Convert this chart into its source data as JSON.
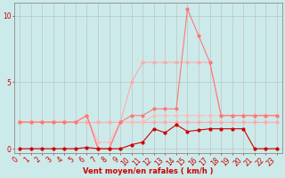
{
  "x": [
    0,
    1,
    2,
    3,
    4,
    5,
    6,
    7,
    8,
    9,
    10,
    11,
    12,
    13,
    14,
    15,
    16,
    17,
    18,
    19,
    20,
    21,
    22,
    23
  ],
  "line_flat": [
    2.0,
    2.0,
    2.0,
    2.0,
    2.0,
    2.0,
    2.0,
    2.0,
    2.0,
    2.0,
    2.0,
    2.0,
    2.0,
    2.0,
    2.0,
    2.0,
    2.0,
    2.0,
    2.0,
    2.0,
    2.0,
    2.0,
    2.0,
    2.0
  ],
  "line_envelope": [
    2.0,
    2.0,
    2.0,
    2.0,
    2.0,
    2.0,
    2.5,
    0.5,
    0.5,
    2.0,
    2.0,
    2.0,
    2.5,
    2.5,
    2.5,
    2.5,
    2.5,
    2.5,
    2.5,
    2.5,
    2.5,
    2.5,
    2.5,
    2.5
  ],
  "line_gusts": [
    2.0,
    2.0,
    2.0,
    2.0,
    2.0,
    2.0,
    2.5,
    0.0,
    0.0,
    2.0,
    5.0,
    6.5,
    6.5,
    6.5,
    6.5,
    6.5,
    6.5,
    6.5,
    2.5,
    2.5,
    2.5,
    2.5,
    2.5,
    2.5
  ],
  "line_peak": [
    2.0,
    2.0,
    2.0,
    2.0,
    2.0,
    2.0,
    2.5,
    0.0,
    0.0,
    2.0,
    2.5,
    2.5,
    3.0,
    3.0,
    3.0,
    10.5,
    8.5,
    6.5,
    2.5,
    2.5,
    2.5,
    2.5,
    2.5,
    2.5
  ],
  "line_mean": [
    0.0,
    0.0,
    0.0,
    0.0,
    0.0,
    0.0,
    0.1,
    0.0,
    0.0,
    0.0,
    0.3,
    0.5,
    1.5,
    1.2,
    1.8,
    1.3,
    1.4,
    1.5,
    1.5,
    1.5,
    1.5,
    0.0,
    0.0,
    0.0
  ],
  "color_bg": "#cdeaea",
  "color_flat": "#ffaaaa",
  "color_envelope": "#ffbbbb",
  "color_gusts": "#ffaaaa",
  "color_peak": "#ff7777",
  "color_mean": "#cc0000",
  "color_grid": "#bbbbbb",
  "color_axis_line": "#888888",
  "color_label": "#cc0000",
  "xlabel": "Vent moyen/en rafales ( km/h )",
  "yticks": [
    0,
    5,
    10
  ],
  "ylim": [
    -0.3,
    11.0
  ],
  "xlim": [
    -0.5,
    23.5
  ],
  "marker_size": 2.0,
  "linewidth": 0.8,
  "tick_fontsize": 5.5,
  "xlabel_fontsize": 6.0
}
